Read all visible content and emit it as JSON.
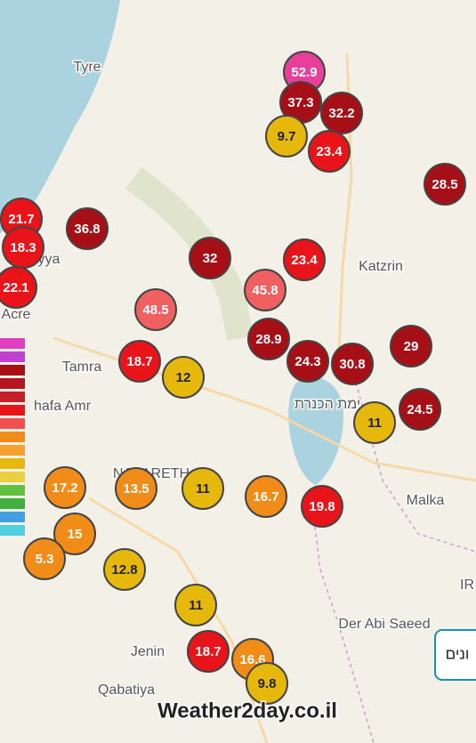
{
  "places": [
    {
      "label": "Tyre"
    },
    {
      "label": "Katzrin"
    },
    {
      "label": "Acre"
    },
    {
      "label": "yya"
    },
    {
      "label": "Tamra"
    },
    {
      "label": "hafa Amr"
    },
    {
      "label": "NAZARETH"
    },
    {
      "label": "ימת הכנרת"
    },
    {
      "label": "Malka"
    },
    {
      "label": "Der Abi Saeed"
    },
    {
      "label": "Jenin"
    },
    {
      "label": "Qabatiya"
    },
    {
      "label": "IR"
    }
  ],
  "markers": [
    {
      "value": 52.9,
      "color": "#e8409a"
    },
    {
      "value": 37.3,
      "color": "#a50f15"
    },
    {
      "value": 32.2,
      "color": "#a50f15"
    },
    {
      "value": 9.7,
      "color": "#e5b80b"
    },
    {
      "value": 23.4,
      "color": "#e8141a"
    },
    {
      "value": 28.5,
      "color": "#a50f15"
    },
    {
      "value": 21.7,
      "color": "#e8141a"
    },
    {
      "value": 18.3,
      "color": "#e8141a"
    },
    {
      "value": 36.8,
      "color": "#a50f15"
    },
    {
      "value": 22.1,
      "color": "#e8141a"
    },
    {
      "value": 32,
      "color": "#a50f15"
    },
    {
      "value": 23.4,
      "color": "#e8141a"
    },
    {
      "value": 45.8,
      "color": "#f06060"
    },
    {
      "value": 48.5,
      "color": "#f06060"
    },
    {
      "value": 28.9,
      "color": "#a50f15"
    },
    {
      "value": 24.3,
      "color": "#a50f15"
    },
    {
      "value": 30.8,
      "color": "#a50f15"
    },
    {
      "value": 29,
      "color": "#a50f15"
    },
    {
      "value": 18.7,
      "color": "#e8141a"
    },
    {
      "value": 12,
      "color": "#e5b80b"
    },
    {
      "value": 24.5,
      "color": "#a50f15"
    },
    {
      "value": 11,
      "color": "#e5b80b"
    },
    {
      "value": 17.2,
      "color": "#f28c18"
    },
    {
      "value": 13.5,
      "color": "#f28c18"
    },
    {
      "value": 11,
      "color": "#e5b80b"
    },
    {
      "value": 16.7,
      "color": "#f28c18"
    },
    {
      "value": 19.8,
      "color": "#e8141a"
    },
    {
      "value": 15,
      "color": "#f28c18"
    },
    {
      "value": 5.3,
      "color": "#f28c18"
    },
    {
      "value": 12.8,
      "color": "#e5b80b"
    },
    {
      "value": 11,
      "color": "#e5b80b"
    },
    {
      "value": 18.7,
      "color": "#e8141a"
    },
    {
      "value": 16.6,
      "color": "#f28c18"
    },
    {
      "value": 9.8,
      "color": "#e5b80b"
    }
  ],
  "watermark": "Weather2day.co.il",
  "button": "ונים"
}
